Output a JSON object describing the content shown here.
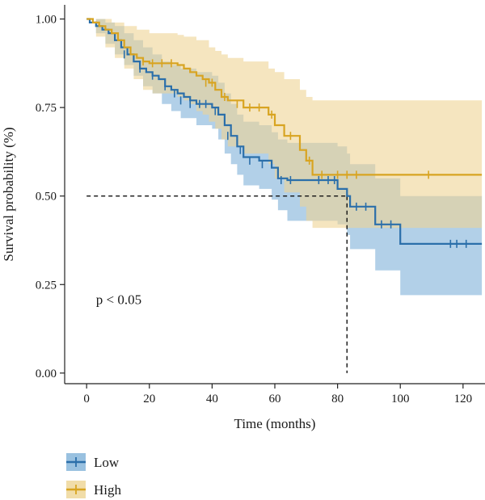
{
  "chart_data": {
    "type": "line",
    "subtype": "kaplan-meier",
    "xlabel": "Time (months)",
    "ylabel": "Survival probability (%)",
    "xlim": [
      -7,
      127
    ],
    "ylim": [
      -0.03,
      1.04
    ],
    "xticks": [
      0,
      20,
      40,
      60,
      80,
      100,
      120
    ],
    "yticks": [
      0.0,
      0.25,
      0.5,
      0.75,
      1.0
    ],
    "ytick_labels": [
      "0.00",
      "0.25",
      "0.50",
      "0.75",
      "1.00"
    ],
    "grid": false,
    "legend_placement": "bottom-left",
    "annotation": "p < 0.05",
    "annotation_pos": {
      "x": 3,
      "y": 0.195
    },
    "median_survival": {
      "series": "Low",
      "time": 83,
      "probability": 0.5
    },
    "series": [
      {
        "name": "Low",
        "color": "#2b6faa",
        "ci_color": "#7fb1d8",
        "steps": [
          [
            0,
            1.0
          ],
          [
            1,
            0.99
          ],
          [
            3,
            0.98
          ],
          [
            5,
            0.97
          ],
          [
            7,
            0.96
          ],
          [
            9,
            0.94
          ],
          [
            11,
            0.92
          ],
          [
            13,
            0.9
          ],
          [
            15,
            0.88
          ],
          [
            17,
            0.86
          ],
          [
            19,
            0.85
          ],
          [
            21,
            0.84
          ],
          [
            23,
            0.83
          ],
          [
            25,
            0.81
          ],
          [
            27,
            0.8
          ],
          [
            29,
            0.79
          ],
          [
            31,
            0.78
          ],
          [
            33,
            0.77
          ],
          [
            35,
            0.76
          ],
          [
            40,
            0.75
          ],
          [
            42,
            0.73
          ],
          [
            44,
            0.7
          ],
          [
            46,
            0.67
          ],
          [
            48,
            0.64
          ],
          [
            50,
            0.61
          ],
          [
            55,
            0.6
          ],
          [
            59,
            0.58
          ],
          [
            61,
            0.55
          ],
          [
            64,
            0.545
          ],
          [
            80,
            0.52
          ],
          [
            83,
            0.5
          ],
          [
            84,
            0.47
          ],
          [
            92,
            0.42
          ],
          [
            100,
            0.365
          ],
          [
            126,
            0.365
          ]
        ],
        "lower": [
          [
            0,
            1.0
          ],
          [
            3,
            0.96
          ],
          [
            6,
            0.93
          ],
          [
            9,
            0.9
          ],
          [
            12,
            0.87
          ],
          [
            15,
            0.84
          ],
          [
            18,
            0.81
          ],
          [
            21,
            0.79
          ],
          [
            24,
            0.76
          ],
          [
            27,
            0.74
          ],
          [
            30,
            0.72
          ],
          [
            35,
            0.7
          ],
          [
            40,
            0.69
          ],
          [
            42,
            0.66
          ],
          [
            44,
            0.62
          ],
          [
            46,
            0.59
          ],
          [
            48,
            0.56
          ],
          [
            50,
            0.53
          ],
          [
            55,
            0.52
          ],
          [
            59,
            0.49
          ],
          [
            61,
            0.46
          ],
          [
            64,
            0.43
          ],
          [
            80,
            0.42
          ],
          [
            83,
            0.39
          ],
          [
            84,
            0.35
          ],
          [
            92,
            0.29
          ],
          [
            100,
            0.22
          ],
          [
            126,
            0.22
          ]
        ],
        "upper": [
          [
            0,
            1.0
          ],
          [
            3,
            1.0
          ],
          [
            6,
            0.99
          ],
          [
            9,
            0.98
          ],
          [
            12,
            0.96
          ],
          [
            15,
            0.94
          ],
          [
            18,
            0.92
          ],
          [
            21,
            0.9
          ],
          [
            24,
            0.88
          ],
          [
            27,
            0.87
          ],
          [
            30,
            0.86
          ],
          [
            35,
            0.85
          ],
          [
            40,
            0.84
          ],
          [
            42,
            0.82
          ],
          [
            44,
            0.79
          ],
          [
            46,
            0.76
          ],
          [
            48,
            0.73
          ],
          [
            50,
            0.71
          ],
          [
            55,
            0.7
          ],
          [
            59,
            0.68
          ],
          [
            61,
            0.66
          ],
          [
            64,
            0.65
          ],
          [
            80,
            0.64
          ],
          [
            83,
            0.62
          ],
          [
            84,
            0.59
          ],
          [
            92,
            0.55
          ],
          [
            100,
            0.5
          ],
          [
            126,
            0.5
          ]
        ],
        "censored": [
          [
            12,
            0.9
          ],
          [
            17,
            0.86
          ],
          [
            21,
            0.84
          ],
          [
            25,
            0.81
          ],
          [
            28,
            0.79
          ],
          [
            30,
            0.77
          ],
          [
            33,
            0.76
          ],
          [
            36,
            0.76
          ],
          [
            38,
            0.76
          ],
          [
            41,
            0.74
          ],
          [
            45,
            0.67
          ],
          [
            49,
            0.63
          ],
          [
            52,
            0.6
          ],
          [
            56,
            0.59
          ],
          [
            62,
            0.545
          ],
          [
            65,
            0.545
          ],
          [
            74,
            0.545
          ],
          [
            77,
            0.545
          ],
          [
            79,
            0.545
          ],
          [
            86,
            0.47
          ],
          [
            89,
            0.47
          ],
          [
            94,
            0.42
          ],
          [
            97,
            0.42
          ],
          [
            116,
            0.365
          ],
          [
            118,
            0.365
          ],
          [
            121,
            0.365
          ]
        ]
      },
      {
        "name": "High",
        "color": "#d8a421",
        "ci_color": "#eed494",
        "steps": [
          [
            0,
            1.0
          ],
          [
            2,
            0.99
          ],
          [
            4,
            0.98
          ],
          [
            6,
            0.97
          ],
          [
            8,
            0.96
          ],
          [
            10,
            0.94
          ],
          [
            12,
            0.92
          ],
          [
            14,
            0.9
          ],
          [
            16,
            0.89
          ],
          [
            18,
            0.88
          ],
          [
            20,
            0.875
          ],
          [
            29,
            0.87
          ],
          [
            31,
            0.86
          ],
          [
            33,
            0.85
          ],
          [
            35,
            0.84
          ],
          [
            37,
            0.83
          ],
          [
            39,
            0.82
          ],
          [
            41,
            0.8
          ],
          [
            43,
            0.78
          ],
          [
            45,
            0.77
          ],
          [
            50,
            0.75
          ],
          [
            58,
            0.73
          ],
          [
            60,
            0.7
          ],
          [
            63,
            0.67
          ],
          [
            68,
            0.63
          ],
          [
            70,
            0.6
          ],
          [
            72,
            0.56
          ],
          [
            126,
            0.56
          ]
        ],
        "lower": [
          [
            0,
            1.0
          ],
          [
            3,
            0.95
          ],
          [
            6,
            0.92
          ],
          [
            9,
            0.89
          ],
          [
            12,
            0.86
          ],
          [
            15,
            0.83
          ],
          [
            18,
            0.8
          ],
          [
            21,
            0.79
          ],
          [
            29,
            0.78
          ],
          [
            31,
            0.77
          ],
          [
            33,
            0.76
          ],
          [
            35,
            0.74
          ],
          [
            37,
            0.73
          ],
          [
            39,
            0.71
          ],
          [
            41,
            0.69
          ],
          [
            43,
            0.66
          ],
          [
            45,
            0.64
          ],
          [
            50,
            0.62
          ],
          [
            58,
            0.59
          ],
          [
            60,
            0.55
          ],
          [
            63,
            0.51
          ],
          [
            68,
            0.47
          ],
          [
            70,
            0.43
          ],
          [
            72,
            0.41
          ],
          [
            126,
            0.41
          ]
        ],
        "upper": [
          [
            0,
            1.0
          ],
          [
            4,
            1.0
          ],
          [
            8,
            0.99
          ],
          [
            12,
            0.98
          ],
          [
            16,
            0.97
          ],
          [
            20,
            0.96
          ],
          [
            29,
            0.955
          ],
          [
            31,
            0.95
          ],
          [
            35,
            0.94
          ],
          [
            39,
            0.92
          ],
          [
            41,
            0.91
          ],
          [
            43,
            0.9
          ],
          [
            45,
            0.89
          ],
          [
            50,
            0.88
          ],
          [
            58,
            0.86
          ],
          [
            60,
            0.85
          ],
          [
            63,
            0.83
          ],
          [
            68,
            0.8
          ],
          [
            70,
            0.78
          ],
          [
            72,
            0.77
          ],
          [
            126,
            0.77
          ]
        ],
        "censored": [
          [
            18,
            0.88
          ],
          [
            21,
            0.875
          ],
          [
            24,
            0.875
          ],
          [
            27,
            0.875
          ],
          [
            38,
            0.82
          ],
          [
            40,
            0.82
          ],
          [
            44,
            0.78
          ],
          [
            48,
            0.76
          ],
          [
            52,
            0.75
          ],
          [
            55,
            0.75
          ],
          [
            59,
            0.73
          ],
          [
            65,
            0.67
          ],
          [
            71,
            0.6
          ],
          [
            75,
            0.56
          ],
          [
            80,
            0.56
          ],
          [
            83,
            0.56
          ],
          [
            86,
            0.56
          ],
          [
            109,
            0.56
          ]
        ]
      }
    ]
  }
}
